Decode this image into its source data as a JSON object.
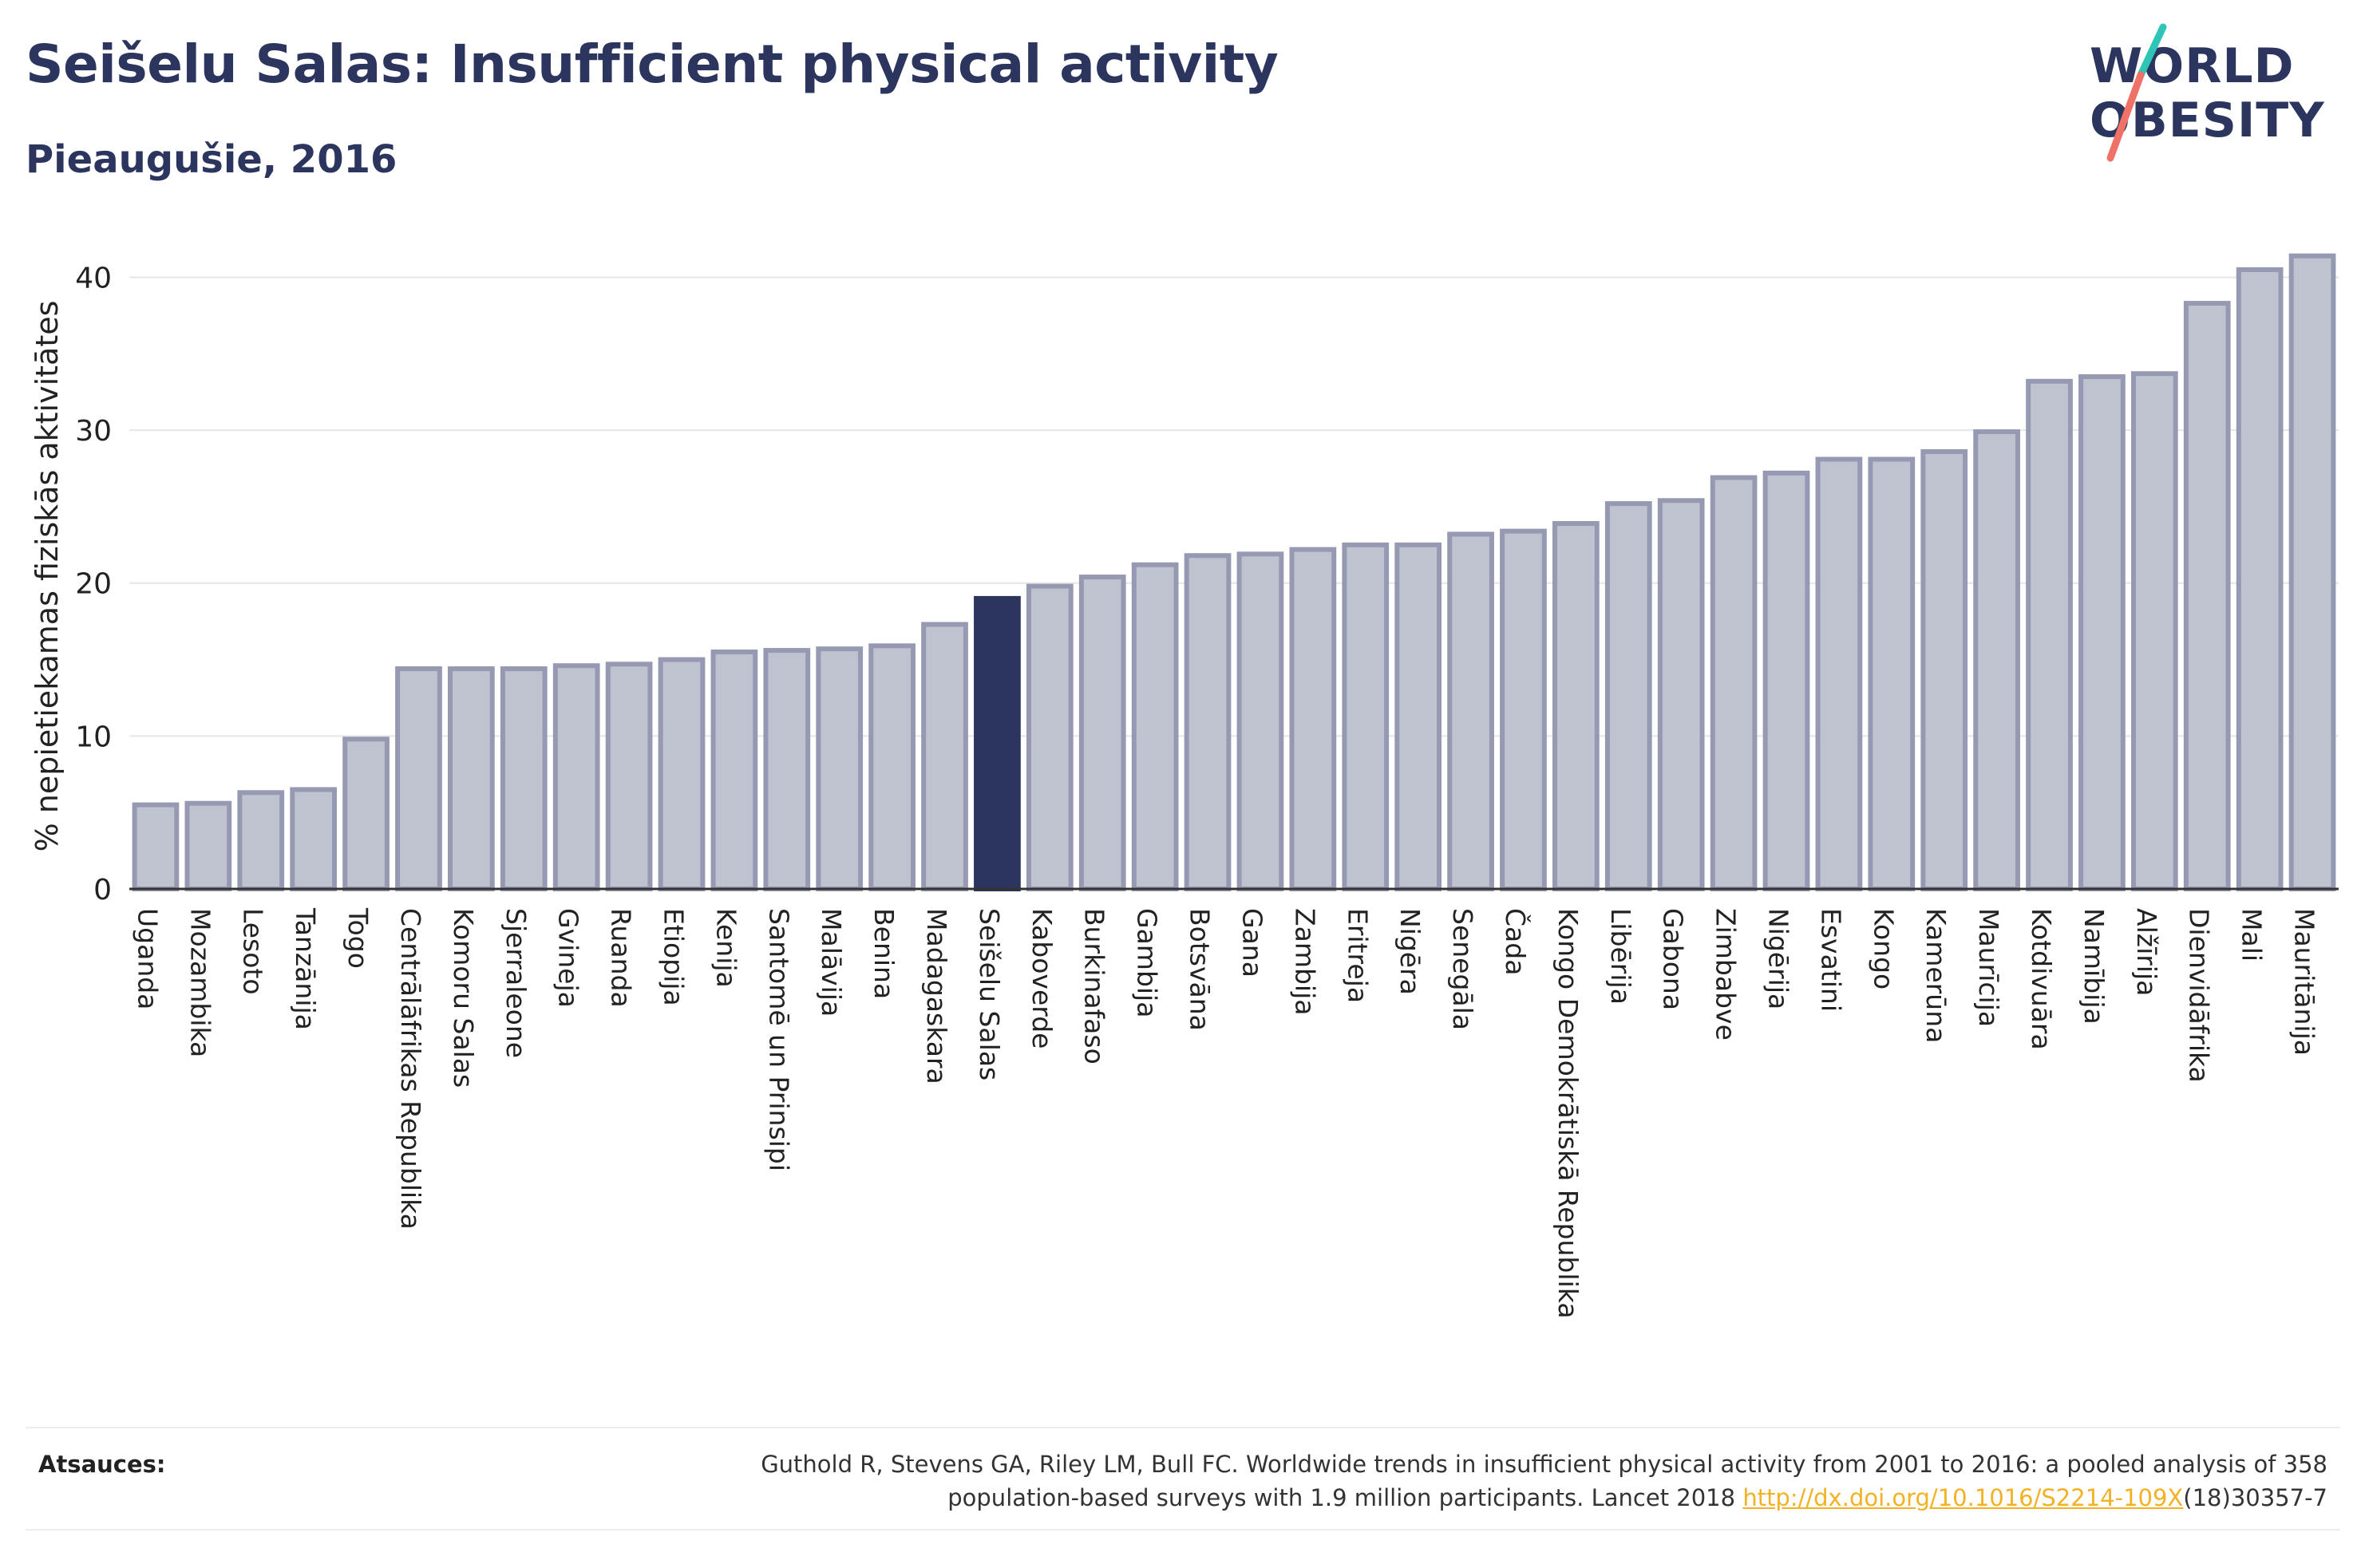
{
  "title": "Seišelu Salas: Insufficient physical activity",
  "subtitle": "Pieaugušie, 2016",
  "logo": {
    "line1": "WORLD",
    "line2": "OBESITY"
  },
  "source": {
    "label": "Atsauces:",
    "text_line1": "Guthold R, Stevens GA, Riley LM, Bull FC. Worldwide trends in insufficient physical activity from 2001 to 2016: a pooled analysis of 358",
    "text_line2_pre": "population-based surveys with 1.9 million participants. Lancet 2018 ",
    "link_text": "http://dx.doi.org/10.1016/S2214-109X",
    "text_line2_post": "(18)30357-7"
  },
  "colors": {
    "bar_fill": "#bfc3d0",
    "bar_stroke": "#9599b2",
    "highlight": "#2b355e",
    "text": "#2b355e",
    "gridline": "#e6e6e6",
    "link": "#f2b224",
    "logo_slash_top": "#2ec4b6",
    "logo_slash_bottom": "#f07167"
  },
  "chart_data": {
    "type": "bar",
    "ylabel": "% nepietiekamas fiziskās aktivitātes",
    "ylim": [
      0,
      43
    ],
    "yticks": [
      0,
      10,
      20,
      30,
      40
    ],
    "grid": true,
    "highlight_category": "Seišelu Salas",
    "categories": [
      "Uganda",
      "Mozambika",
      "Lesoto",
      "Tanzānija",
      "Togo",
      "Centrālāfrikas Republika",
      "Komoru Salas",
      "Sjerraleone",
      "Gvineja",
      "Ruanda",
      "Etiopija",
      "Kenija",
      "Santomē un Prinsipi",
      "Malāvija",
      "Benina",
      "Madagaskara",
      "Seišelu Salas",
      "Kaboverde",
      "Burkinafaso",
      "Gambija",
      "Botsvāna",
      "Gana",
      "Zambija",
      "Eritreja",
      "Nigēra",
      "Senegāla",
      "Čada",
      "Kongo Demokrātiskā Republika",
      "Libērija",
      "Gabona",
      "Zimbabve",
      "Nigērija",
      "Esvatini",
      "Kongo",
      "Kamerūna",
      "Maurīcija",
      "Kotdivuāra",
      "Namībija",
      "Alžīrija",
      "Dienvidāfrika",
      "Mali",
      "Mauritānija"
    ],
    "values": [
      5.5,
      5.6,
      6.3,
      6.5,
      9.8,
      14.4,
      14.4,
      14.4,
      14.6,
      14.7,
      15.0,
      15.5,
      15.6,
      15.7,
      15.9,
      17.3,
      19.0,
      19.8,
      20.4,
      21.2,
      21.8,
      21.9,
      22.2,
      22.5,
      22.5,
      23.2,
      23.4,
      23.9,
      25.2,
      25.4,
      26.9,
      27.2,
      28.1,
      28.1,
      28.6,
      29.9,
      33.2,
      33.5,
      33.7,
      38.3,
      40.5,
      41.4
    ]
  }
}
